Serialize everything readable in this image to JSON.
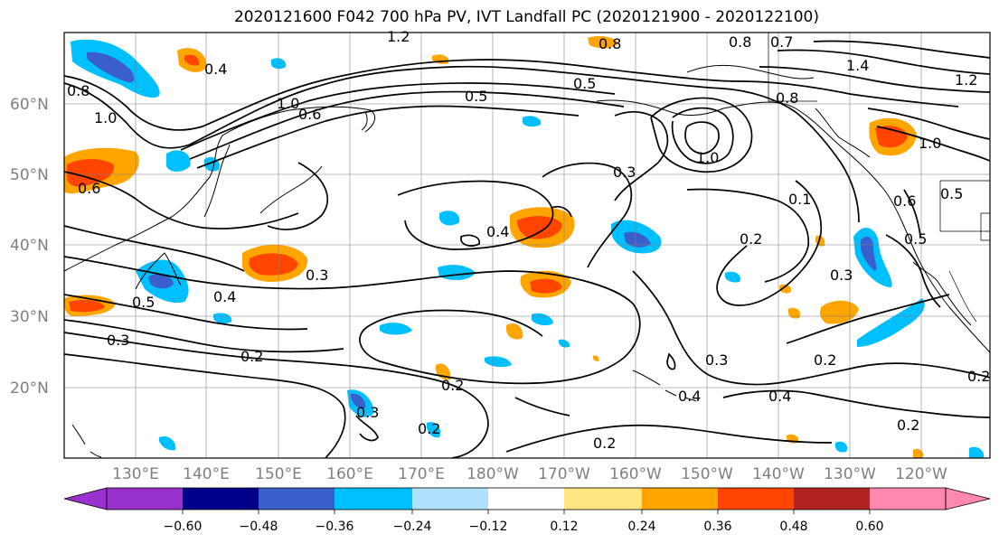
{
  "title": "2020121600 F042 700 hPa PV, IVT Landfall PC (2020121900 - 2020122100)",
  "lat_labels": [
    "60°N",
    "50°N",
    "40°N",
    "30°N",
    "20°N"
  ],
  "lon_labels": [
    "130°E",
    "140°E",
    "150°E",
    "160°E",
    "170°E",
    "180°W",
    "170°W",
    "160°W",
    "150°W",
    "140°W",
    "130°W",
    "120°W"
  ],
  "colorbar": {
    "ticks": [
      "−0.60",
      "−0.48",
      "−0.36",
      "−0.24",
      "−0.12",
      "0.12",
      "0.24",
      "0.36",
      "0.48",
      "0.60"
    ],
    "colors": [
      "#9932cc",
      "#00008b",
      "#3a5fcd",
      "#00bfff",
      "#b0e2ff",
      "#ffffff",
      "#ffe680",
      "#ffa500",
      "#ff4500",
      "#b22222",
      "#ff88b0"
    ]
  },
  "contour_labels": [
    "1.2",
    "0.8",
    "0.7",
    "0.4",
    "0.5",
    "1.4",
    "1.2",
    "0.8",
    "1.0",
    "1.0",
    "0.8",
    "0.6",
    "0.5",
    "1.0",
    "0.8",
    "0.3",
    "1.0",
    "0.6",
    "0.6",
    "0.5",
    "0.4",
    "0.2",
    "0.5",
    "0.3",
    "0.4",
    "0.3",
    "0.5",
    "0.3",
    "0.2",
    "0.3",
    "0.2",
    "0.3",
    "0.4",
    "0.4",
    "0.2",
    "0.2",
    "0.2",
    "0.2",
    "0.2",
    "0.1"
  ],
  "colors": {
    "grid": "#7f7f7f",
    "contour": "#000000",
    "label_gray": "#7f7f7f"
  }
}
